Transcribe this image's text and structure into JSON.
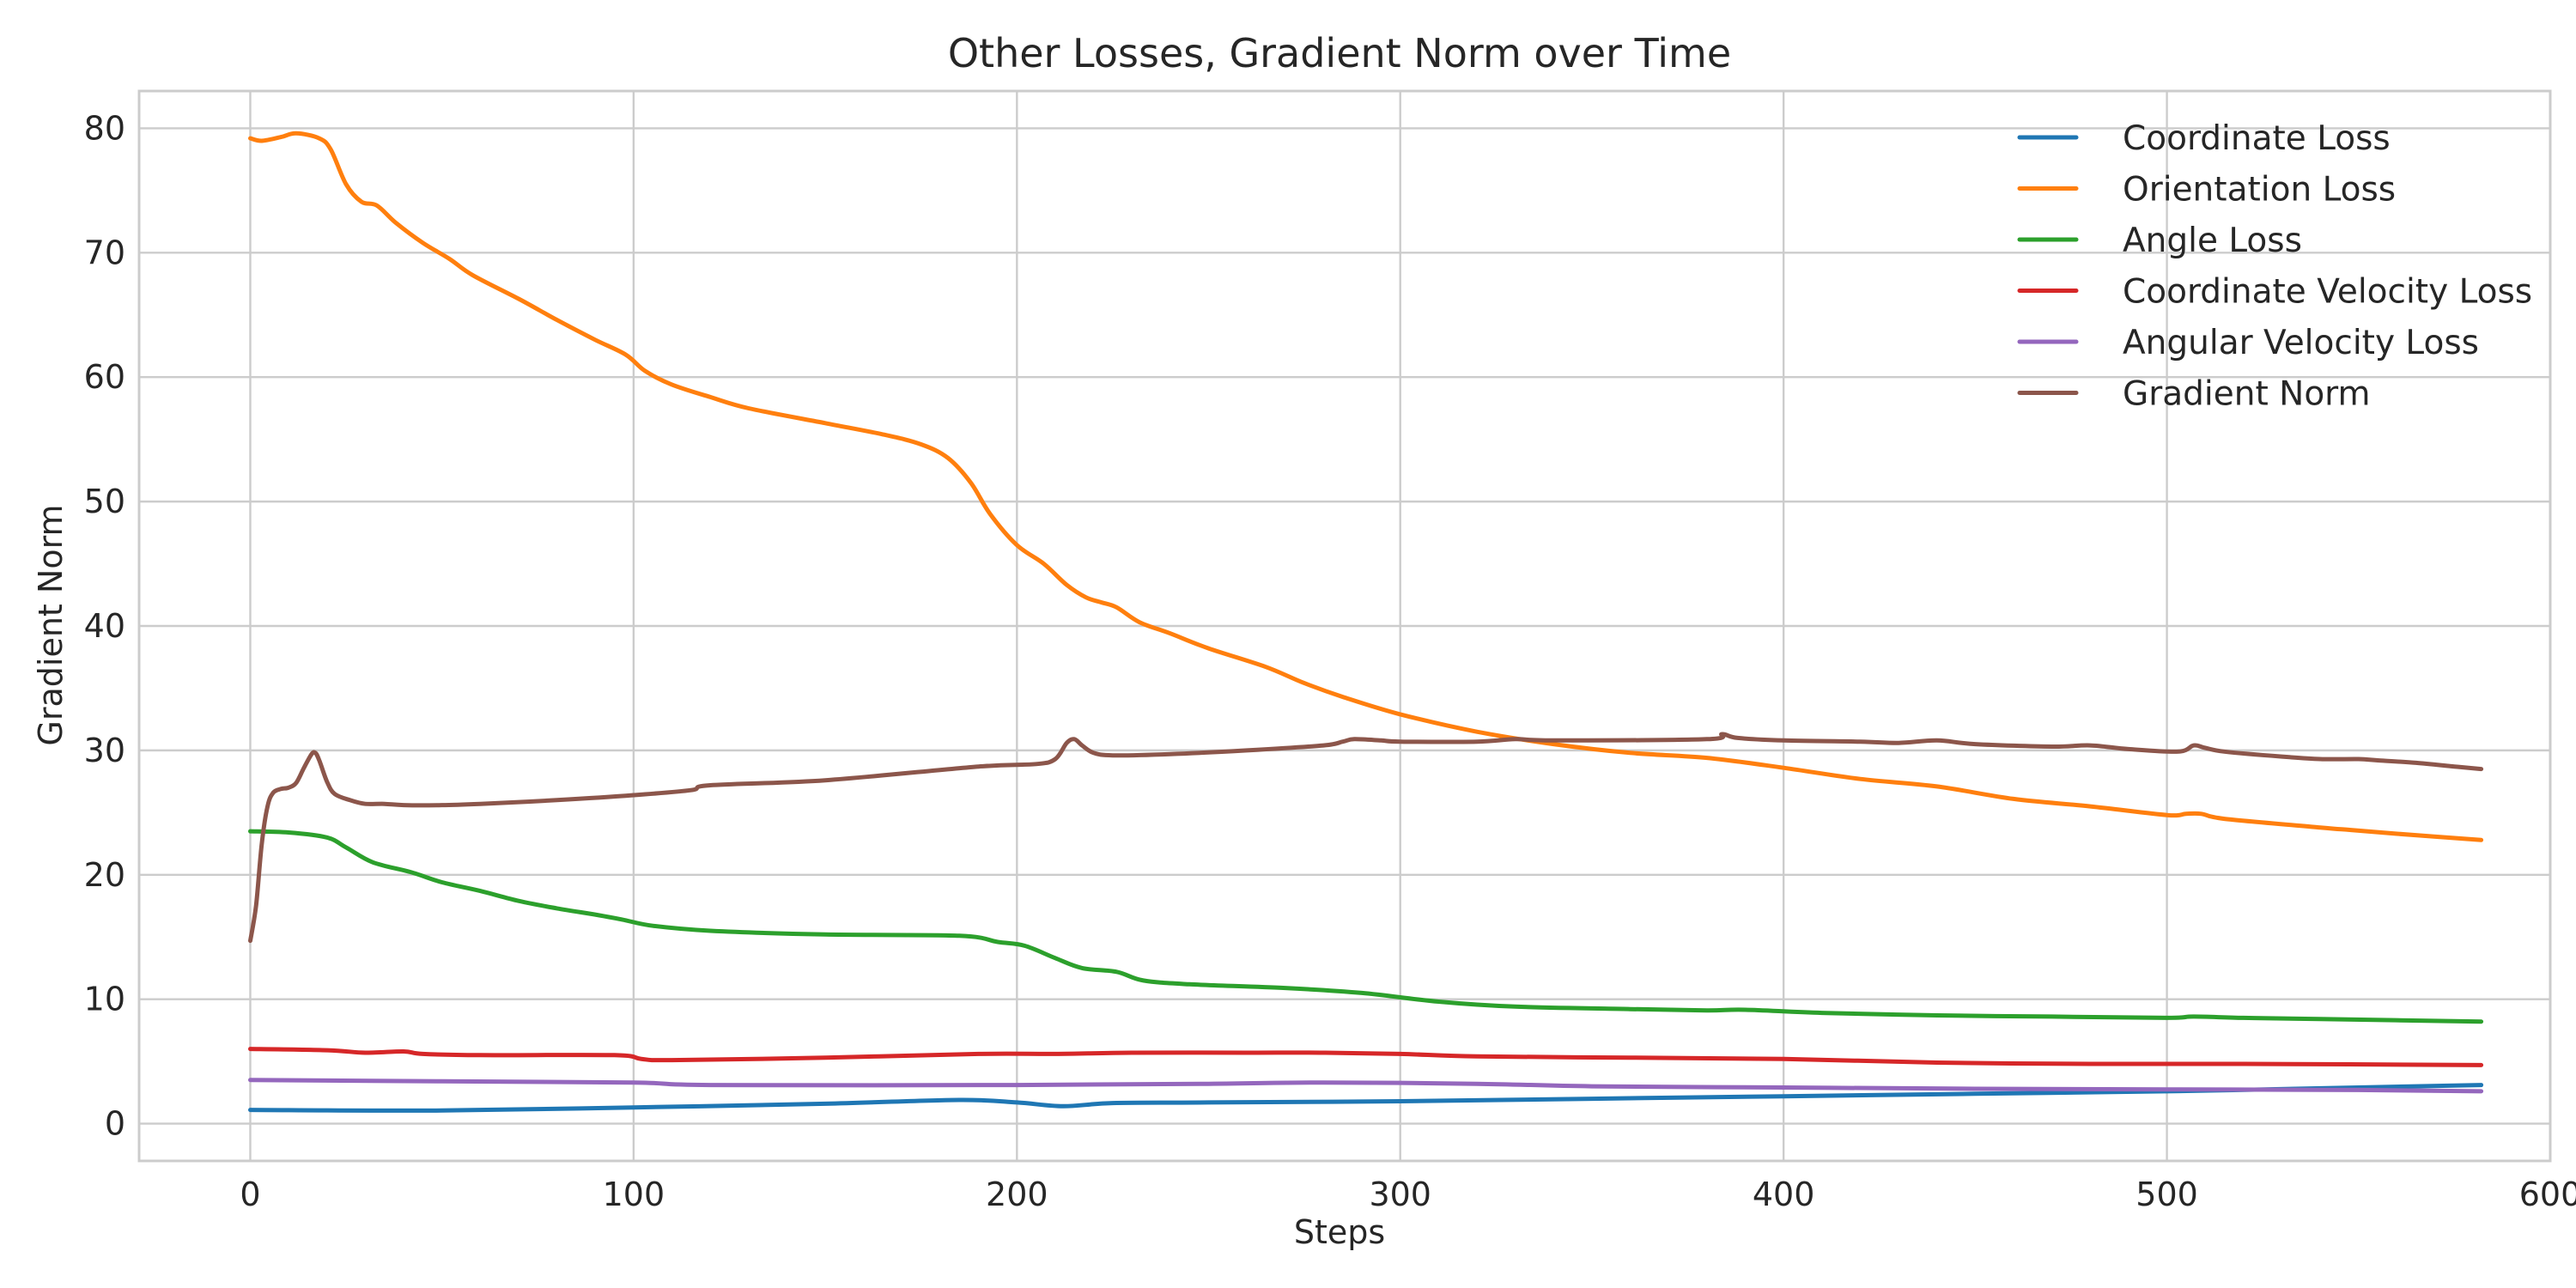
{
  "chart_data": {
    "type": "line",
    "title": "Other Losses, Gradient Norm over Time",
    "xlabel": "Steps",
    "ylabel": "Gradient Norm",
    "xlim": [
      -29,
      600
    ],
    "ylim": [
      -3,
      83
    ],
    "x_ticks": [
      0,
      100,
      200,
      300,
      400,
      500,
      600
    ],
    "y_ticks": [
      0,
      10,
      20,
      30,
      40,
      50,
      60,
      70,
      80
    ],
    "grid": true,
    "legend_position": "top-right",
    "series": [
      {
        "name": "Coordinate Loss",
        "color": "#1f77b4",
        "points": [
          [
            0,
            1.1
          ],
          [
            50,
            1.05
          ],
          [
            100,
            1.3
          ],
          [
            150,
            1.6
          ],
          [
            185,
            1.9
          ],
          [
            200,
            1.7
          ],
          [
            212,
            1.4
          ],
          [
            225,
            1.65
          ],
          [
            250,
            1.7
          ],
          [
            300,
            1.8
          ],
          [
            350,
            2.0
          ],
          [
            400,
            2.2
          ],
          [
            450,
            2.4
          ],
          [
            500,
            2.6
          ],
          [
            550,
            2.9
          ],
          [
            582,
            3.1
          ]
        ]
      },
      {
        "name": "Orientation Loss",
        "color": "#ff7f0e",
        "points": [
          [
            0,
            79.2
          ],
          [
            3,
            79.0
          ],
          [
            8,
            79.3
          ],
          [
            12,
            79.6
          ],
          [
            18,
            79.2
          ],
          [
            21,
            78.3
          ],
          [
            25,
            75.5
          ],
          [
            29,
            74.1
          ],
          [
            33,
            73.8
          ],
          [
            38,
            72.4
          ],
          [
            45,
            70.8
          ],
          [
            52,
            69.5
          ],
          [
            58,
            68.2
          ],
          [
            70,
            66.3
          ],
          [
            80,
            64.6
          ],
          [
            90,
            63.0
          ],
          [
            98,
            61.8
          ],
          [
            103,
            60.5
          ],
          [
            110,
            59.4
          ],
          [
            120,
            58.4
          ],
          [
            130,
            57.5
          ],
          [
            150,
            56.3
          ],
          [
            165,
            55.4
          ],
          [
            175,
            54.6
          ],
          [
            182,
            53.5
          ],
          [
            188,
            51.5
          ],
          [
            193,
            49.0
          ],
          [
            200,
            46.5
          ],
          [
            207,
            45.0
          ],
          [
            213,
            43.3
          ],
          [
            218,
            42.3
          ],
          [
            222,
            41.9
          ],
          [
            226,
            41.5
          ],
          [
            232,
            40.3
          ],
          [
            240,
            39.4
          ],
          [
            250,
            38.2
          ],
          [
            265,
            36.7
          ],
          [
            275,
            35.4
          ],
          [
            285,
            34.3
          ],
          [
            300,
            32.9
          ],
          [
            320,
            31.5
          ],
          [
            340,
            30.5
          ],
          [
            360,
            29.8
          ],
          [
            380,
            29.4
          ],
          [
            400,
            28.6
          ],
          [
            420,
            27.7
          ],
          [
            440,
            27.1
          ],
          [
            460,
            26.1
          ],
          [
            480,
            25.5
          ],
          [
            500,
            24.8
          ],
          [
            505,
            24.9
          ],
          [
            509,
            24.9
          ],
          [
            515,
            24.5
          ],
          [
            540,
            23.8
          ],
          [
            548,
            23.6
          ],
          [
            560,
            23.3
          ],
          [
            582,
            22.8
          ]
        ]
      },
      {
        "name": "Angle Loss",
        "color": "#2ca02c",
        "points": [
          [
            0,
            23.5
          ],
          [
            10,
            23.4
          ],
          [
            20,
            23.0
          ],
          [
            25,
            22.2
          ],
          [
            32,
            21.0
          ],
          [
            42,
            20.2
          ],
          [
            50,
            19.4
          ],
          [
            60,
            18.7
          ],
          [
            70,
            17.9
          ],
          [
            80,
            17.3
          ],
          [
            90,
            16.8
          ],
          [
            97,
            16.4
          ],
          [
            105,
            15.9
          ],
          [
            120,
            15.5
          ],
          [
            150,
            15.2
          ],
          [
            185,
            15.1
          ],
          [
            195,
            14.6
          ],
          [
            202,
            14.3
          ],
          [
            210,
            13.3
          ],
          [
            217,
            12.5
          ],
          [
            226,
            12.2
          ],
          [
            233,
            11.5
          ],
          [
            245,
            11.2
          ],
          [
            270,
            10.9
          ],
          [
            290,
            10.5
          ],
          [
            310,
            9.8
          ],
          [
            330,
            9.4
          ],
          [
            360,
            9.2
          ],
          [
            380,
            9.1
          ],
          [
            390,
            9.15
          ],
          [
            410,
            8.9
          ],
          [
            440,
            8.7
          ],
          [
            470,
            8.6
          ],
          [
            500,
            8.5
          ],
          [
            507,
            8.6
          ],
          [
            520,
            8.5
          ],
          [
            540,
            8.4
          ],
          [
            582,
            8.2
          ]
        ]
      },
      {
        "name": "Coordinate Velocity Loss",
        "color": "#d62728",
        "points": [
          [
            0,
            6.0
          ],
          [
            20,
            5.9
          ],
          [
            30,
            5.7
          ],
          [
            40,
            5.8
          ],
          [
            45,
            5.6
          ],
          [
            60,
            5.5
          ],
          [
            95,
            5.5
          ],
          [
            102,
            5.2
          ],
          [
            110,
            5.1
          ],
          [
            150,
            5.3
          ],
          [
            190,
            5.6
          ],
          [
            210,
            5.6
          ],
          [
            230,
            5.7
          ],
          [
            260,
            5.7
          ],
          [
            280,
            5.7
          ],
          [
            300,
            5.6
          ],
          [
            320,
            5.4
          ],
          [
            360,
            5.3
          ],
          [
            400,
            5.2
          ],
          [
            440,
            4.9
          ],
          [
            480,
            4.8
          ],
          [
            520,
            4.8
          ],
          [
            582,
            4.7
          ]
        ]
      },
      {
        "name": "Angular Velocity Loss",
        "color": "#9467bd",
        "points": [
          [
            0,
            3.5
          ],
          [
            50,
            3.4
          ],
          [
            100,
            3.3
          ],
          [
            120,
            3.1
          ],
          [
            200,
            3.1
          ],
          [
            250,
            3.2
          ],
          [
            280,
            3.3
          ],
          [
            320,
            3.2
          ],
          [
            350,
            3.0
          ],
          [
            400,
            2.9
          ],
          [
            450,
            2.8
          ],
          [
            500,
            2.75
          ],
          [
            550,
            2.7
          ],
          [
            582,
            2.6
          ]
        ]
      },
      {
        "name": "Gradient Norm",
        "color": "#8c564b",
        "points": [
          [
            0,
            14.7
          ],
          [
            1.5,
            17.5
          ],
          [
            3,
            22.5
          ],
          [
            4.5,
            25.5
          ],
          [
            6,
            26.6
          ],
          [
            8,
            26.9
          ],
          [
            10,
            27.0
          ],
          [
            12,
            27.4
          ],
          [
            14,
            28.6
          ],
          [
            16,
            29.7
          ],
          [
            17,
            29.8
          ],
          [
            18,
            29.2
          ],
          [
            20,
            27.5
          ],
          [
            22,
            26.5
          ],
          [
            26,
            26.0
          ],
          [
            30,
            25.7
          ],
          [
            35,
            25.7
          ],
          [
            40,
            25.6
          ],
          [
            50,
            25.6
          ],
          [
            60,
            25.7
          ],
          [
            80,
            26.0
          ],
          [
            100,
            26.4
          ],
          [
            115,
            26.8
          ],
          [
            120,
            27.2
          ],
          [
            150,
            27.6
          ],
          [
            190,
            28.7
          ],
          [
            205,
            28.9
          ],
          [
            210,
            29.3
          ],
          [
            213,
            30.6
          ],
          [
            215,
            30.9
          ],
          [
            217,
            30.4
          ],
          [
            220,
            29.8
          ],
          [
            225,
            29.6
          ],
          [
            240,
            29.7
          ],
          [
            260,
            30.0
          ],
          [
            280,
            30.4
          ],
          [
            285,
            30.7
          ],
          [
            288,
            30.9
          ],
          [
            295,
            30.8
          ],
          [
            300,
            30.7
          ],
          [
            320,
            30.7
          ],
          [
            330,
            30.9
          ],
          [
            340,
            30.8
          ],
          [
            380,
            30.9
          ],
          [
            384,
            31.3
          ],
          [
            388,
            31.0
          ],
          [
            400,
            30.8
          ],
          [
            420,
            30.7
          ],
          [
            430,
            30.6
          ],
          [
            440,
            30.8
          ],
          [
            450,
            30.5
          ],
          [
            470,
            30.3
          ],
          [
            480,
            30.4
          ],
          [
            490,
            30.1
          ],
          [
            503,
            29.9
          ],
          [
            507,
            30.4
          ],
          [
            510,
            30.2
          ],
          [
            515,
            29.9
          ],
          [
            530,
            29.5
          ],
          [
            540,
            29.3
          ],
          [
            550,
            29.3
          ],
          [
            555,
            29.2
          ],
          [
            565,
            29.0
          ],
          [
            575,
            28.7
          ],
          [
            582,
            28.5
          ]
        ]
      }
    ]
  }
}
